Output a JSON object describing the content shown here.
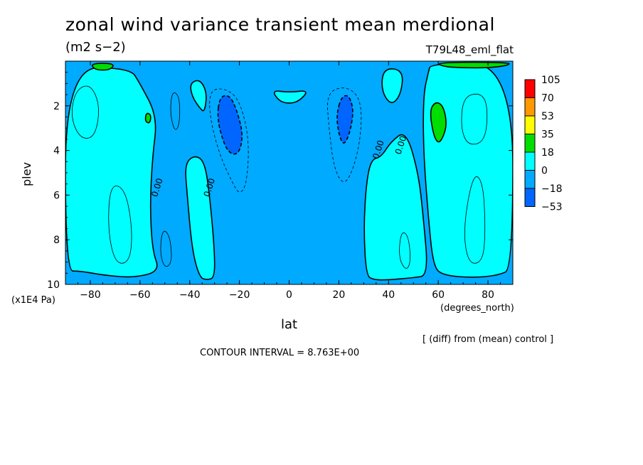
{
  "title": "zonal wind variance transient mean merdional",
  "units": "(m2 s−2)",
  "experiment": "T79L48_eml_flat",
  "difference_note": "[ (diff) from (mean) control ]",
  "contour_interval": "CONTOUR INTERVAL = 8.763E+00",
  "chart_data": {
    "type": "heatmap",
    "xlabel": "lat",
    "xunit": "(degrees_north)",
    "ylabel": "plev",
    "yunit": "(x1E4 Pa)",
    "xlim": [
      -90,
      90
    ],
    "ylim": [
      10,
      0
    ],
    "x_ticks": [
      -80,
      -60,
      -40,
      -20,
      0,
      20,
      40,
      60,
      80
    ],
    "y_ticks": [
      2,
      4,
      6,
      8,
      10
    ],
    "contour_labels": [
      {
        "text": "0.00",
        "lat": -52,
        "plev": 5.7
      },
      {
        "text": "0.00",
        "lat": -31,
        "plev": 5.7
      },
      {
        "text": "0.00",
        "lat": 37,
        "plev": 4.0
      },
      {
        "text": "0.00",
        "lat": 46,
        "plev": 3.8
      }
    ],
    "legend": {
      "placement": "right",
      "levels": [
        "105",
        "70",
        "53",
        "35",
        "18",
        "0",
        "−18",
        "−53"
      ],
      "colors": [
        "#ff0000",
        "#ff9900",
        "#ffff00",
        "#00dd00",
        "#00ffff",
        "#00aaff",
        "#0066ff"
      ]
    },
    "regions": [
      {
        "name": "southern-band",
        "fill": "#00ffff",
        "pts": [
          [
            -90,
            0.3
          ],
          [
            -64,
            0.3
          ],
          [
            -60,
            1.0
          ],
          [
            -53,
            2.5
          ],
          [
            -55,
            4.3
          ],
          [
            -56,
            6.5
          ],
          [
            -55,
            8.5
          ],
          [
            -52,
            9.4
          ],
          [
            -62,
            9.7
          ],
          [
            -74,
            9.6
          ],
          [
            -84,
            9.4
          ],
          [
            -90,
            9.4
          ]
        ]
      },
      {
        "name": "southern-peak",
        "fill": "#00dd00",
        "pts": [
          [
            -57.5,
            2.3
          ],
          [
            -55.5,
            2.4
          ],
          [
            -56,
            2.8
          ],
          [
            -58,
            2.7
          ]
        ]
      },
      {
        "name": "southern-top-peak",
        "fill": "#00dd00",
        "pts": [
          [
            -80,
            0.1
          ],
          [
            -70,
            0.1
          ],
          [
            -72,
            0.4
          ],
          [
            -78,
            0.4
          ]
        ]
      },
      {
        "name": "minus-18-south",
        "fill": "#0066ff",
        "pts": [
          [
            -28,
            1.6
          ],
          [
            -24,
            1.5
          ],
          [
            -21,
            2.2
          ],
          [
            -18.5,
            3.3
          ],
          [
            -20,
            4.1
          ],
          [
            -23,
            4.2
          ],
          [
            -26,
            3.8
          ],
          [
            -29,
            2.6
          ]
        ]
      },
      {
        "name": "minus-18-north",
        "fill": "#0066ff",
        "pts": [
          [
            21,
            1.6
          ],
          [
            24,
            1.5
          ],
          [
            26,
            2.2
          ],
          [
            24.5,
            3.2
          ],
          [
            22,
            3.8
          ],
          [
            20,
            3.3
          ],
          [
            19,
            2.4
          ]
        ]
      },
      {
        "name": "column-south",
        "fill": "#00ffff",
        "pts": [
          [
            -42,
            4.6
          ],
          [
            -38,
            4.2
          ],
          [
            -34,
            4.5
          ],
          [
            -32,
            6
          ],
          [
            -30,
            8.5
          ],
          [
            -30,
            9.7
          ],
          [
            -33,
            9.8
          ],
          [
            -36,
            9.7
          ],
          [
            -39,
            8.5
          ],
          [
            -41,
            6
          ]
        ]
      },
      {
        "name": "bubble-south-upper",
        "fill": "#00ffff",
        "pts": [
          [
            -40,
            1.0
          ],
          [
            -36,
            0.8
          ],
          [
            -33,
            1.4
          ],
          [
            -34,
            2.3
          ],
          [
            -36,
            2.1
          ],
          [
            -39,
            1.6
          ]
        ]
      },
      {
        "name": "equatorial-bubble",
        "fill": "#00ffff",
        "pts": [
          [
            -7,
            1.3
          ],
          [
            0,
            1.4
          ],
          [
            8,
            1.3
          ],
          [
            4,
            1.8
          ],
          [
            0,
            1.9
          ],
          [
            -4,
            1.8
          ]
        ]
      },
      {
        "name": "northern-column",
        "fill": "#00ffff",
        "pts": [
          [
            33,
            4.4
          ],
          [
            37,
            4.3
          ],
          [
            41,
            3.6
          ],
          [
            47,
            3.1
          ],
          [
            52,
            5
          ],
          [
            54,
            7
          ],
          [
            56,
            9.6
          ],
          [
            50,
            9.7
          ],
          [
            40,
            9.8
          ],
          [
            34,
            9.8
          ],
          [
            31,
            9.6
          ],
          [
            30,
            7.5
          ],
          [
            31,
            5.5
          ]
        ]
      },
      {
        "name": "northern-top-bubble",
        "fill": "#00ffff",
        "pts": [
          [
            38,
            0.3
          ],
          [
            46,
            0.4
          ],
          [
            45,
            1.5
          ],
          [
            41,
            2.0
          ],
          [
            37,
            1.3
          ]
        ]
      },
      {
        "name": "northern-band",
        "fill": "#00ffff",
        "pts": [
          [
            57,
            0.1
          ],
          [
            90,
            0.1
          ],
          [
            90,
            9.3
          ],
          [
            84,
            9.6
          ],
          [
            74,
            9.7
          ],
          [
            62,
            9.6
          ],
          [
            58,
            9.2
          ],
          [
            56,
            7
          ],
          [
            54,
            4
          ],
          [
            54,
            1.5
          ],
          [
            56,
            0.5
          ]
        ]
      },
      {
        "name": "northern-peak",
        "fill": "#00dd00",
        "pts": [
          [
            56.5,
            2.2
          ],
          [
            59,
            1.8
          ],
          [
            62,
            2.0
          ],
          [
            63.5,
            2.8
          ],
          [
            62,
            3.4
          ],
          [
            60,
            3.7
          ],
          [
            58,
            3.3
          ]
        ]
      },
      {
        "name": "northern-top-peak",
        "fill": "#00dd00",
        "pts": [
          [
            59,
            0.05
          ],
          [
            89,
            0.05
          ],
          [
            88,
            0.2
          ],
          [
            80,
            0.3
          ],
          [
            70,
            0.3
          ],
          [
            62,
            0.25
          ]
        ]
      }
    ]
  }
}
